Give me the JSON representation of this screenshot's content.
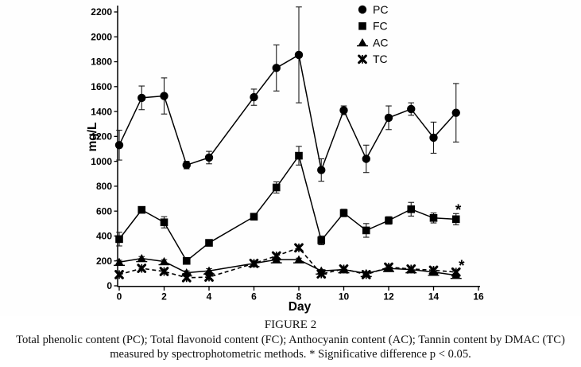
{
  "figure": {
    "caption_title": "FIGURE 2",
    "caption_line1": "Total phenolic content (PC); Total flavonoid content (FC); Anthocyanin content (AC); Tannin content by DMAC (TC)",
    "caption_line2": "measured by spectrophotometric methods. * Significative difference p < 0.05."
  },
  "chart_data": {
    "type": "line",
    "title": "",
    "xlabel": "Day",
    "ylabel": "mg/L",
    "xlim": [
      0,
      16
    ],
    "ylim": [
      0,
      2200
    ],
    "x_ticks": [
      0,
      2,
      4,
      6,
      8,
      10,
      12,
      14,
      16
    ],
    "y_ticks": [
      0,
      200,
      400,
      600,
      800,
      1000,
      1200,
      1400,
      1600,
      1800,
      2000,
      2200
    ],
    "grid": false,
    "legend_position": "top-center-inside",
    "ink_color": "#000000",
    "x": [
      0,
      1,
      2,
      3,
      4,
      6,
      7,
      8,
      9,
      10,
      11,
      12,
      13,
      14,
      15
    ],
    "series": [
      {
        "name": "PC",
        "marker": "circle",
        "line": "solid",
        "values": [
          1130,
          1510,
          1525,
          970,
          1030,
          1515,
          1750,
          1855,
          930,
          1410,
          1020,
          1350,
          1420,
          1190,
          1390
        ],
        "errors": [
          120,
          95,
          145,
          30,
          50,
          65,
          185,
          385,
          90,
          35,
          110,
          95,
          50,
          125,
          235
        ]
      },
      {
        "name": "FC",
        "marker": "square",
        "line": "solid",
        "values": [
          375,
          610,
          510,
          200,
          345,
          555,
          790,
          1045,
          365,
          585,
          445,
          525,
          615,
          545,
          535
        ],
        "errors": [
          55,
          25,
          45,
          25,
          20,
          20,
          45,
          75,
          35,
          30,
          55,
          30,
          55,
          40,
          45
        ]
      },
      {
        "name": "AC",
        "marker": "triangle-up",
        "line": "solid",
        "values": [
          190,
          220,
          195,
          105,
          120,
          180,
          210,
          210,
          120,
          130,
          100,
          140,
          130,
          110,
          85
        ],
        "errors": [
          15,
          15,
          15,
          15,
          18,
          12,
          15,
          12,
          10,
          10,
          10,
          10,
          10,
          10,
          10
        ]
      },
      {
        "name": "TC",
        "marker": "x-cross",
        "line": "dashed",
        "values": [
          90,
          140,
          115,
          65,
          70,
          180,
          240,
          305,
          95,
          135,
          90,
          150,
          135,
          125,
          110
        ],
        "errors": [
          12,
          12,
          12,
          10,
          10,
          10,
          15,
          15,
          10,
          10,
          10,
          10,
          10,
          10,
          10
        ]
      }
    ],
    "annotations": [
      {
        "text": "*",
        "day": 15.1,
        "value": 570,
        "meaning": "significant-difference-FC-day15"
      },
      {
        "text": "*",
        "day": 15.25,
        "value": 122,
        "meaning": "significant-difference-TC-day15"
      }
    ]
  }
}
